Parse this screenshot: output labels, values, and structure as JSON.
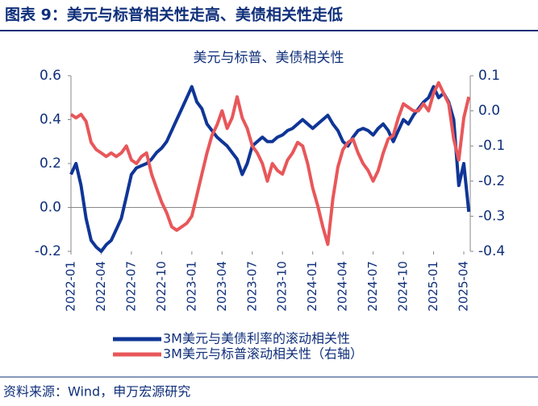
{
  "header": {
    "title": "图表 9：美元与标普相关性走高、美债相关性走低"
  },
  "chart_data": {
    "type": "line",
    "title": "美元与标普、美债相关性",
    "categories": [
      "2022-01",
      null,
      null,
      null,
      null,
      null,
      "2022-04",
      null,
      null,
      null,
      null,
      null,
      "2022-07",
      null,
      null,
      null,
      null,
      null,
      "2022-10",
      null,
      null,
      null,
      null,
      null,
      "2023-01",
      null,
      null,
      null,
      null,
      null,
      "2023-04",
      null,
      null,
      null,
      null,
      null,
      "2023-07",
      null,
      null,
      null,
      null,
      null,
      "2023-10",
      null,
      null,
      null,
      null,
      null,
      "2024-01",
      null,
      null,
      null,
      null,
      null,
      "2024-04",
      null,
      null,
      null,
      null,
      null,
      "2024-07",
      null,
      null,
      null,
      null,
      null,
      "2024-10",
      null,
      null,
      null,
      null,
      null,
      "2025-01",
      null,
      null,
      null,
      null,
      null,
      "2025-04",
      null
    ],
    "series": [
      {
        "name": "3M美元与美债利率的滚动相关性",
        "color": "#0f3596",
        "axis": "y",
        "values": [
          0.15,
          0.2,
          0.1,
          -0.05,
          -0.15,
          -0.18,
          -0.2,
          -0.17,
          -0.15,
          -0.1,
          -0.05,
          0.05,
          0.15,
          0.18,
          0.19,
          0.2,
          0.22,
          0.25,
          0.27,
          0.3,
          0.35,
          0.4,
          0.45,
          0.5,
          0.55,
          0.48,
          0.45,
          0.38,
          0.35,
          0.32,
          0.3,
          0.28,
          0.25,
          0.22,
          0.15,
          0.2,
          0.28,
          0.3,
          0.32,
          0.3,
          0.3,
          0.32,
          0.33,
          0.35,
          0.36,
          0.38,
          0.4,
          0.38,
          0.36,
          0.38,
          0.4,
          0.42,
          0.38,
          0.35,
          0.3,
          0.28,
          0.32,
          0.35,
          0.36,
          0.35,
          0.33,
          0.36,
          0.38,
          0.35,
          0.3,
          0.35,
          0.4,
          0.38,
          0.42,
          0.45,
          0.48,
          0.5,
          0.55,
          0.5,
          0.52,
          0.48,
          0.4,
          0.1,
          0.2,
          -0.02
        ]
      },
      {
        "name": "3M美元与标普滚动相关性（右轴）",
        "color": "#e8575a",
        "axis": "y2",
        "values": [
          -0.01,
          -0.02,
          -0.01,
          -0.03,
          -0.09,
          -0.11,
          -0.12,
          -0.13,
          -0.12,
          -0.13,
          -0.12,
          -0.1,
          -0.14,
          -0.15,
          -0.13,
          -0.12,
          -0.18,
          -0.22,
          -0.26,
          -0.29,
          -0.33,
          -0.34,
          -0.33,
          -0.32,
          -0.3,
          -0.24,
          -0.18,
          -0.12,
          -0.07,
          -0.04,
          0.0,
          -0.05,
          -0.02,
          0.04,
          -0.02,
          -0.05,
          -0.1,
          -0.12,
          -0.15,
          -0.2,
          -0.15,
          -0.17,
          -0.18,
          -0.14,
          -0.12,
          -0.09,
          -0.1,
          -0.15,
          -0.22,
          -0.27,
          -0.33,
          -0.38,
          -0.25,
          -0.16,
          -0.11,
          -0.09,
          -0.08,
          -0.12,
          -0.15,
          -0.17,
          -0.2,
          -0.17,
          -0.12,
          -0.08,
          -0.07,
          -0.02,
          0.02,
          0.01,
          0.0,
          0.0,
          0.02,
          0.0,
          0.05,
          0.08,
          0.05,
          0.02,
          -0.08,
          -0.14,
          -0.02,
          0.04
        ]
      }
    ],
    "ylim": [
      -0.2,
      0.6
    ],
    "yticks": [
      0.6,
      0.4,
      0.2,
      {
        "value": 0,
        "label": "0.0"
      },
      -0.2
    ],
    "y2lim": [
      -0.4,
      0.1
    ],
    "y2ticks": [
      0.1,
      {
        "value": 0,
        "label": "0.0"
      },
      -0.1,
      -0.2,
      -0.3,
      -0.4
    ]
  },
  "footer": {
    "source": "资料来源：Wind，申万宏源研究"
  }
}
